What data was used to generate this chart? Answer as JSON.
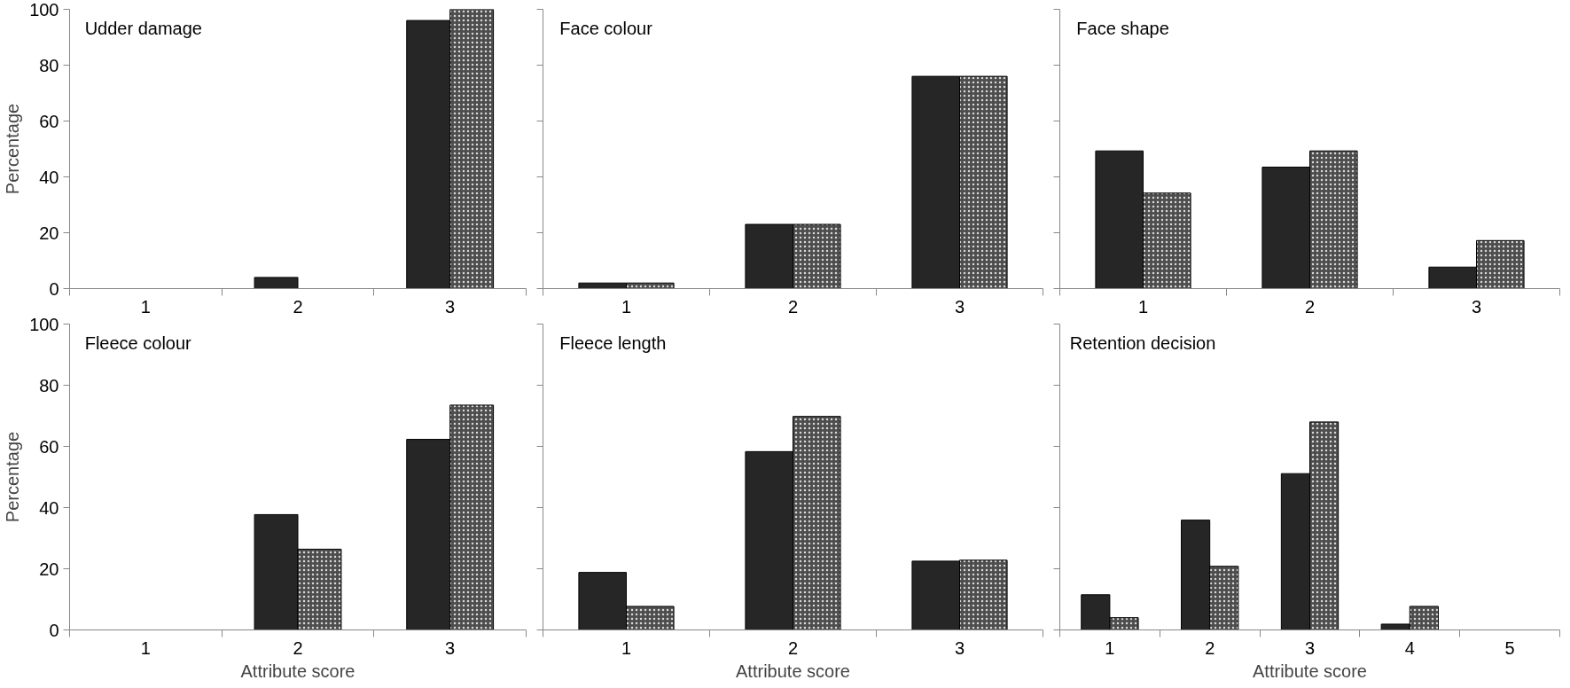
{
  "chart_data": [
    {
      "type": "bar",
      "title": "Udder damage",
      "ylabel": "Percentage",
      "categories": [
        "1",
        "2",
        "3"
      ],
      "ylim": [
        0,
        100
      ],
      "yticks": [
        0,
        20,
        40,
        60,
        80,
        100
      ],
      "grid": false,
      "series": [
        {
          "color": "#262626",
          "values": [
            0,
            4,
            96
          ]
        },
        {
          "color": "#4d4d4d",
          "values": [
            0,
            0,
            100
          ]
        }
      ]
    },
    {
      "type": "bar",
      "title": "Face colour",
      "categories": [
        "1",
        "2",
        "3"
      ],
      "ylim": [
        0,
        100
      ],
      "yticks": [
        0,
        20,
        40,
        60,
        80,
        100
      ],
      "grid": false,
      "tick_labels": "x",
      "series": [
        {
          "color": "#262626",
          "values": [
            2,
            23,
            76
          ]
        },
        {
          "color": "#4d4d4d",
          "values": [
            2,
            23,
            76
          ]
        }
      ]
    },
    {
      "type": "bar",
      "title": "Face shape",
      "categories": [
        "1",
        "2",
        "3"
      ],
      "ylim": [
        0,
        100
      ],
      "yticks": [
        0,
        20,
        40,
        60,
        80,
        100
      ],
      "grid": false,
      "tick_labels": "x",
      "series": [
        {
          "color": "#262626",
          "values": [
            49.3,
            43.5,
            7.7
          ]
        },
        {
          "color": "#4d4d4d",
          "values": [
            34.2,
            49.3,
            17.2
          ]
        }
      ]
    },
    {
      "type": "bar",
      "title": "Fleece colour",
      "ylabel": "Percentage",
      "xlabel": "Attribute score",
      "categories": [
        "1",
        "2",
        "3"
      ],
      "ylim": [
        0,
        100
      ],
      "yticks": [
        0,
        20,
        40,
        60,
        80,
        100
      ],
      "grid": false,
      "series": [
        {
          "color": "#262626",
          "values": [
            0,
            37.7,
            62.3
          ]
        },
        {
          "color": "#4d4d4d",
          "values": [
            0,
            26.4,
            73.5
          ]
        }
      ]
    },
    {
      "type": "bar",
      "title": "Fleece length",
      "xlabel": "Attribute score",
      "categories": [
        "1",
        "2",
        "3"
      ],
      "ylim": [
        0,
        100
      ],
      "yticks": [
        0,
        20,
        40,
        60,
        80,
        100
      ],
      "grid": false,
      "tick_labels": "x",
      "series": [
        {
          "color": "#262626",
          "values": [
            18.8,
            58.3,
            22.5
          ]
        },
        {
          "color": "#4d4d4d",
          "values": [
            7.7,
            69.8,
            22.8
          ]
        }
      ]
    },
    {
      "type": "bar",
      "title": "Retention decision",
      "xlabel": "Attribute score",
      "categories": [
        "1",
        "2",
        "3",
        "4",
        "5"
      ],
      "ylim": [
        0,
        100
      ],
      "yticks": [
        0,
        20,
        40,
        60,
        80,
        100
      ],
      "grid": false,
      "tick_labels": "x",
      "series": [
        {
          "color": "#262626",
          "values": [
            11.5,
            35.9,
            51.1,
            1.9,
            0
          ]
        },
        {
          "color": "#4d4d4d",
          "values": [
            4.0,
            20.8,
            68.0,
            7.7,
            0
          ]
        }
      ]
    }
  ]
}
